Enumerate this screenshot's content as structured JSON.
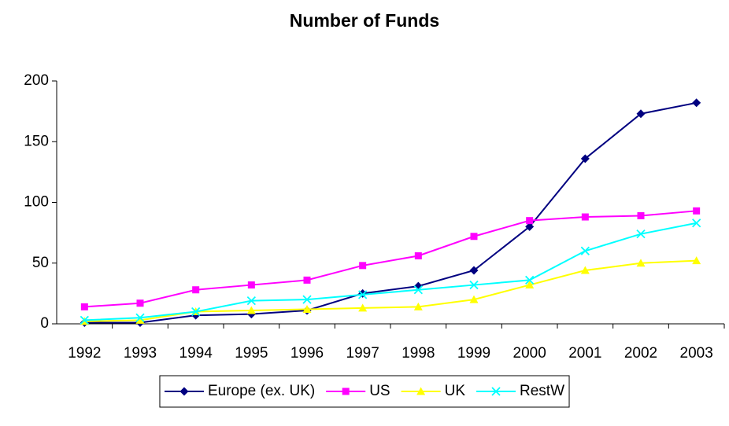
{
  "chart_data": {
    "type": "line",
    "title": "Number of Funds",
    "categories": [
      "1992",
      "1993",
      "1994",
      "1995",
      "1996",
      "1997",
      "1998",
      "1999",
      "2000",
      "2001",
      "2002",
      "2003"
    ],
    "series": [
      {
        "name": "Europe (ex. UK)",
        "color": "#000080",
        "marker": "diamond",
        "values": [
          1,
          1,
          7,
          8,
          11,
          25,
          31,
          44,
          80,
          136,
          173,
          182
        ]
      },
      {
        "name": "US",
        "color": "#ff00ff",
        "marker": "square",
        "values": [
          14,
          17,
          28,
          32,
          36,
          48,
          56,
          72,
          85,
          88,
          89,
          93
        ]
      },
      {
        "name": "UK",
        "color": "#ffff00",
        "marker": "triangle",
        "values": [
          2,
          3,
          10,
          11,
          12,
          13,
          14,
          20,
          32,
          44,
          50,
          52
        ]
      },
      {
        "name": "RestW",
        "color": "#00ffff",
        "marker": "x",
        "values": [
          3,
          5,
          10,
          19,
          20,
          24,
          28,
          32,
          36,
          60,
          74,
          83
        ]
      }
    ],
    "ylim": [
      0,
      200
    ],
    "yticks": [
      0,
      50,
      100,
      150,
      200
    ],
    "grid": false,
    "legend": "bottom"
  }
}
